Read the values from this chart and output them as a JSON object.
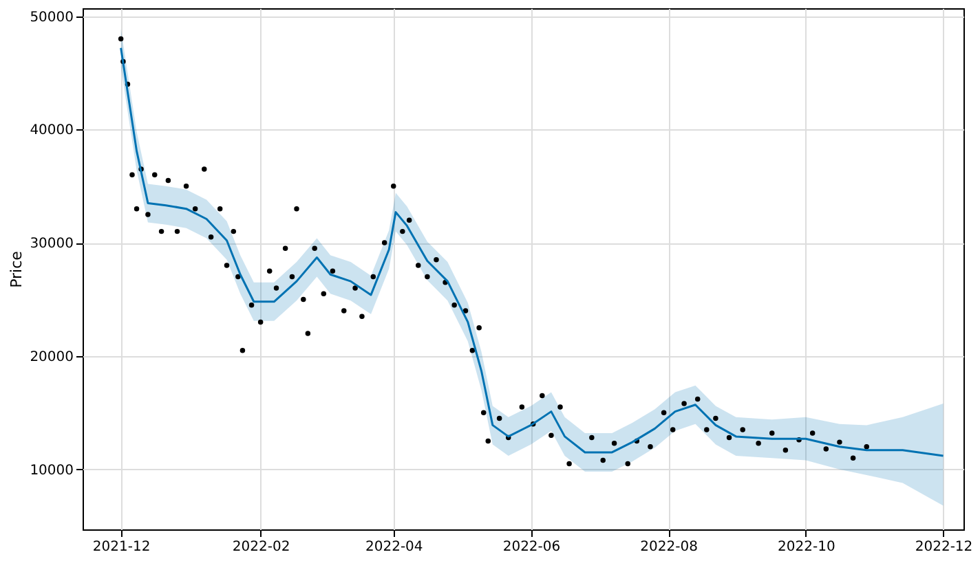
{
  "chart_data": {
    "type": "line",
    "ylabel": "Price",
    "xlim": [
      "2021-11-14",
      "2022-12-10"
    ],
    "ylim": [
      4700,
      50700
    ],
    "xticks": [
      "2021-12",
      "2022-02",
      "2022-04",
      "2022-06",
      "2022-08",
      "2022-10",
      "2022-12"
    ],
    "yticks": [
      10000,
      20000,
      30000,
      40000,
      50000
    ],
    "grid": true,
    "series": [
      {
        "type": "scatter",
        "color": "#000000",
        "marker": "circle",
        "x": [
          "2021-12-01",
          "2021-12-02",
          "2021-12-04",
          "2021-12-06",
          "2021-12-08",
          "2021-12-10",
          "2021-12-13",
          "2021-12-16",
          "2021-12-19",
          "2021-12-22",
          "2021-12-26",
          "2021-12-30",
          "2022-01-03",
          "2022-01-07",
          "2022-01-10",
          "2022-01-14",
          "2022-01-17",
          "2022-01-20",
          "2022-01-22",
          "2022-01-24",
          "2022-01-28",
          "2022-02-01",
          "2022-02-05",
          "2022-02-08",
          "2022-02-12",
          "2022-02-15",
          "2022-02-17",
          "2022-02-20",
          "2022-02-22",
          "2022-02-25",
          "2022-03-01",
          "2022-03-05",
          "2022-03-10",
          "2022-03-15",
          "2022-03-18",
          "2022-03-23",
          "2022-03-28",
          "2022-04-01",
          "2022-04-05",
          "2022-04-08",
          "2022-04-12",
          "2022-04-16",
          "2022-04-20",
          "2022-04-24",
          "2022-04-28",
          "2022-05-03",
          "2022-05-06",
          "2022-05-09",
          "2022-05-11",
          "2022-05-13",
          "2022-05-18",
          "2022-05-22",
          "2022-05-28",
          "2022-06-02",
          "2022-06-06",
          "2022-06-10",
          "2022-06-14",
          "2022-06-18",
          "2022-06-28",
          "2022-07-03",
          "2022-07-08",
          "2022-07-14",
          "2022-07-18",
          "2022-07-24",
          "2022-07-30",
          "2022-08-03",
          "2022-08-08",
          "2022-08-14",
          "2022-08-18",
          "2022-08-22",
          "2022-08-28",
          "2022-09-03",
          "2022-09-10",
          "2022-09-16",
          "2022-09-22",
          "2022-09-28",
          "2022-10-04",
          "2022-10-10",
          "2022-10-16",
          "2022-10-22",
          "2022-10-28"
        ],
        "values": [
          48000,
          46000,
          44000,
          36000,
          33000,
          36500,
          32500,
          36000,
          31000,
          35500,
          31000,
          35000,
          33000,
          36500,
          30500,
          33000,
          28000,
          31000,
          27000,
          20500,
          24500,
          23000,
          27500,
          26000,
          29500,
          27000,
          33000,
          25000,
          22000,
          29500,
          25500,
          27500,
          24000,
          26000,
          23500,
          27000,
          30000,
          35000,
          31000,
          32000,
          28000,
          27000,
          28500,
          26500,
          24500,
          24000,
          20500,
          22500,
          15000,
          12500,
          14500,
          12800,
          15500,
          14000,
          16500,
          13000,
          15500,
          10500,
          12800,
          10800,
          12300,
          10500,
          12500,
          12000,
          15000,
          13500,
          15800,
          16200,
          13500,
          14500,
          12800,
          13500,
          12300,
          13200,
          11700,
          12600,
          13200,
          11800,
          12400,
          11000,
          12000
        ]
      },
      {
        "color": "#0072b2",
        "x": [
          "2021-12-01",
          "2021-12-08",
          "2021-12-13",
          "2021-12-21",
          "2021-12-30",
          "2022-01-08",
          "2022-01-17",
          "2022-01-23",
          "2022-01-29",
          "2022-02-07",
          "2022-02-17",
          "2022-02-26",
          "2022-03-04",
          "2022-03-13",
          "2022-03-22",
          "2022-03-30",
          "2022-04-02",
          "2022-04-07",
          "2022-04-16",
          "2022-04-25",
          "2022-05-04",
          "2022-05-10",
          "2022-05-15",
          "2022-05-22",
          "2022-06-01",
          "2022-06-10",
          "2022-06-16",
          "2022-06-25",
          "2022-07-07",
          "2022-07-16",
          "2022-07-26",
          "2022-08-04",
          "2022-08-13",
          "2022-08-22",
          "2022-08-31",
          "2022-09-16",
          "2022-10-01",
          "2022-10-16",
          "2022-10-28",
          "2022-11-13",
          "2022-12-01"
        ],
        "values": [
          47200,
          38100,
          33500,
          33300,
          33000,
          32100,
          30200,
          27200,
          24800,
          24800,
          26600,
          28700,
          27200,
          26600,
          25400,
          29400,
          32700,
          31500,
          28400,
          26600,
          23000,
          18700,
          13900,
          12900,
          13900,
          15100,
          12900,
          11500,
          11500,
          12400,
          13600,
          15100,
          15700,
          13900,
          12900,
          12700,
          12700,
          12000,
          11700,
          11700,
          11200
        ],
        "lower": [
          45500,
          36400,
          31800,
          31600,
          31300,
          30400,
          28500,
          25500,
          23100,
          23100,
          24900,
          27000,
          25500,
          24900,
          23700,
          27700,
          31000,
          29800,
          26700,
          24900,
          21300,
          17000,
          12200,
          11200,
          12200,
          13400,
          11200,
          9800,
          9800,
          10700,
          11900,
          13400,
          14000,
          12200,
          11200,
          11000,
          10800,
          10000,
          9500,
          8800,
          6800
        ],
        "upper": [
          48900,
          39800,
          35200,
          35000,
          34700,
          33800,
          31900,
          28900,
          26500,
          26500,
          28300,
          30400,
          28900,
          28300,
          27100,
          31100,
          34400,
          33200,
          30100,
          28300,
          24700,
          20400,
          15600,
          14600,
          15600,
          16800,
          14600,
          13200,
          13200,
          14100,
          15300,
          16800,
          17400,
          15600,
          14600,
          14400,
          14600,
          14000,
          13900,
          14600,
          15800
        ]
      }
    ]
  }
}
